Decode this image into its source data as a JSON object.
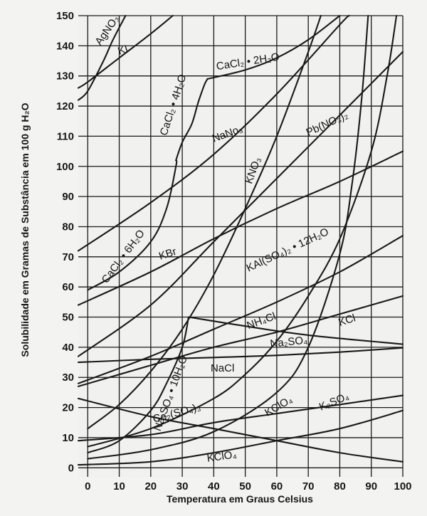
{
  "chart_data": {
    "type": "line",
    "xlabel": "Temperatura em Graus Celsius",
    "ylabel": "Solubilidade em Gramas de Substância em 100 g H₂O",
    "xlim": [
      -3,
      100
    ],
    "ylim": [
      -3,
      150
    ],
    "xticks": [
      0,
      10,
      20,
      30,
      40,
      50,
      60,
      70,
      80,
      90,
      100
    ],
    "yticks": [
      0,
      10,
      20,
      30,
      40,
      50,
      60,
      70,
      80,
      90,
      100,
      110,
      120,
      130,
      140,
      150
    ],
    "grid": true,
    "series": [
      {
        "id": "agno3",
        "label": "AgNO₃",
        "label_at": [
          4,
          140,
          -55
        ],
        "points": [
          [
            -3,
            122
          ],
          [
            0,
            125
          ],
          [
            5,
            135
          ],
          [
            8,
            142
          ],
          [
            12,
            150
          ]
        ]
      },
      {
        "id": "ki",
        "label": "KI",
        "label_at": [
          10,
          137,
          -18
        ],
        "points": [
          [
            -3,
            126
          ],
          [
            0,
            128
          ],
          [
            10,
            136
          ],
          [
            20,
            144
          ],
          [
            27,
            150
          ]
        ]
      },
      {
        "id": "cacl2-2h2o",
        "label": "CaCl₂ • 2H₂O",
        "label_at": [
          41,
          132,
          -9
        ],
        "points": [
          [
            38,
            129
          ],
          [
            50,
            132
          ],
          [
            60,
            136
          ],
          [
            70,
            142
          ],
          [
            80,
            150
          ]
        ]
      },
      {
        "id": "cacl2-4h2o",
        "label": "CaCl₂ • 4H₂O",
        "label_at": [
          25,
          110,
          -72
        ],
        "points": [
          [
            28,
            102
          ],
          [
            30,
            108
          ],
          [
            33,
            114
          ],
          [
            35,
            121
          ],
          [
            37,
            127
          ],
          [
            38,
            129
          ]
        ]
      },
      {
        "id": "cacl2-6h2o",
        "label": "CaCl₂ • 6H₂O",
        "label_at": [
          6,
          61,
          -53
        ],
        "points": [
          [
            0,
            59
          ],
          [
            10,
            65
          ],
          [
            20,
            75
          ],
          [
            25,
            86
          ],
          [
            28,
            100
          ],
          [
            28,
            102
          ]
        ]
      },
      {
        "id": "nano3",
        "label": "NaNo₃",
        "label_at": [
          40,
          108,
          -20
        ],
        "points": [
          [
            -3,
            72
          ],
          [
            20,
            88
          ],
          [
            40,
            104
          ],
          [
            60,
            124
          ],
          [
            80,
            147
          ],
          [
            83,
            150
          ]
        ]
      },
      {
        "id": "kno3",
        "label": "KNO₃",
        "label_at": [
          52,
          94,
          -70
        ],
        "points": [
          [
            0,
            13
          ],
          [
            10,
            21
          ],
          [
            20,
            32
          ],
          [
            30,
            46
          ],
          [
            40,
            64
          ],
          [
            50,
            86
          ],
          [
            60,
            110
          ],
          [
            70,
            138
          ],
          [
            74,
            150
          ]
        ]
      },
      {
        "id": "pbno32",
        "label": "Pb(NO₃)₂",
        "label_at": [
          70,
          110,
          -25
        ],
        "points": [
          [
            -3,
            37
          ],
          [
            20,
            54
          ],
          [
            40,
            75
          ],
          [
            60,
            96
          ],
          [
            80,
            117
          ],
          [
            100,
            138
          ]
        ]
      },
      {
        "id": "kbr",
        "label": "KBr",
        "label_at": [
          23,
          69,
          -18
        ],
        "points": [
          [
            -3,
            54
          ],
          [
            20,
            65
          ],
          [
            40,
            76
          ],
          [
            60,
            86
          ],
          [
            80,
            95
          ],
          [
            100,
            105
          ]
        ]
      },
      {
        "id": "kalso4",
        "label": "KAl(SO₄)₂ • 12H₂O",
        "label_at": [
          51,
          65,
          -25
        ],
        "points": [
          [
            0,
            3
          ],
          [
            20,
            6
          ],
          [
            40,
            12
          ],
          [
            60,
            25
          ],
          [
            70,
            40
          ],
          [
            80,
            71
          ],
          [
            84,
            95
          ],
          [
            87,
            123
          ],
          [
            89,
            150
          ]
        ]
      },
      {
        "id": "nh4cl",
        "label": "NH₄Cl",
        "label_at": [
          51,
          46,
          -20
        ],
        "points": [
          [
            -3,
            28
          ],
          [
            20,
            37
          ],
          [
            40,
            46
          ],
          [
            60,
            55
          ],
          [
            80,
            65
          ],
          [
            100,
            77
          ]
        ]
      },
      {
        "id": "kcl",
        "label": "KCl",
        "label_at": [
          80,
          47,
          -18
        ],
        "points": [
          [
            -3,
            27
          ],
          [
            20,
            34
          ],
          [
            40,
            40
          ],
          [
            60,
            45
          ],
          [
            80,
            51
          ],
          [
            100,
            57
          ]
        ]
      },
      {
        "id": "na2so4",
        "label": "Na₂SO₄",
        "label_at": [
          58,
          40,
          -6
        ],
        "points": [
          [
            32,
            50
          ],
          [
            50,
            47
          ],
          [
            70,
            44
          ],
          [
            100,
            41
          ]
        ]
      },
      {
        "id": "na2so4-10h2o",
        "label": "Na₂SO₄ • 10H₂O",
        "label_at": [
          23,
          12,
          -70
        ],
        "points": [
          [
            0,
            5
          ],
          [
            10,
            9
          ],
          [
            20,
            19
          ],
          [
            25,
            28
          ],
          [
            30,
            40
          ],
          [
            32,
            50
          ]
        ]
      },
      {
        "id": "nacl",
        "label": "NaCl",
        "label_at": [
          39,
          32,
          0
        ],
        "points": [
          [
            -3,
            35
          ],
          [
            20,
            36
          ],
          [
            40,
            36.6
          ],
          [
            60,
            37.3
          ],
          [
            80,
            38.4
          ],
          [
            100,
            39.8
          ]
        ]
      },
      {
        "id": "kclo4",
        "label": "KClO₄",
        "label_at": [
          57,
          17,
          -30
        ],
        "points": [
          [
            0,
            7
          ],
          [
            20,
            13
          ],
          [
            40,
            23
          ],
          [
            50,
            31
          ],
          [
            60,
            42
          ],
          [
            70,
            57
          ],
          [
            80,
            76
          ],
          [
            90,
            105
          ],
          [
            95,
            130
          ],
          [
            98,
            150
          ]
        ]
      },
      {
        "id": "k2so4",
        "label": "K₂SO₄",
        "label_at": [
          74,
          19,
          -22
        ],
        "points": [
          [
            -3,
            9
          ],
          [
            20,
            11
          ],
          [
            40,
            15
          ],
          [
            60,
            18
          ],
          [
            80,
            21
          ],
          [
            100,
            24
          ]
        ]
      },
      {
        "id": "ce2so43",
        "label": "Ce₂(SO₄)₃",
        "label_at": [
          21,
          15,
          -15
        ],
        "points": [
          [
            -3,
            23
          ],
          [
            20,
            17
          ],
          [
            40,
            13
          ],
          [
            60,
            9
          ],
          [
            80,
            5
          ],
          [
            100,
            2
          ]
        ]
      },
      {
        "id": "kclo4-low",
        "label": "KClO₄",
        "label_at": [
          38,
          2,
          -8
        ],
        "points": [
          [
            -3,
            1
          ],
          [
            20,
            2
          ],
          [
            40,
            5
          ],
          [
            60,
            9
          ],
          [
            80,
            13
          ],
          [
            100,
            19
          ]
        ]
      }
    ]
  }
}
